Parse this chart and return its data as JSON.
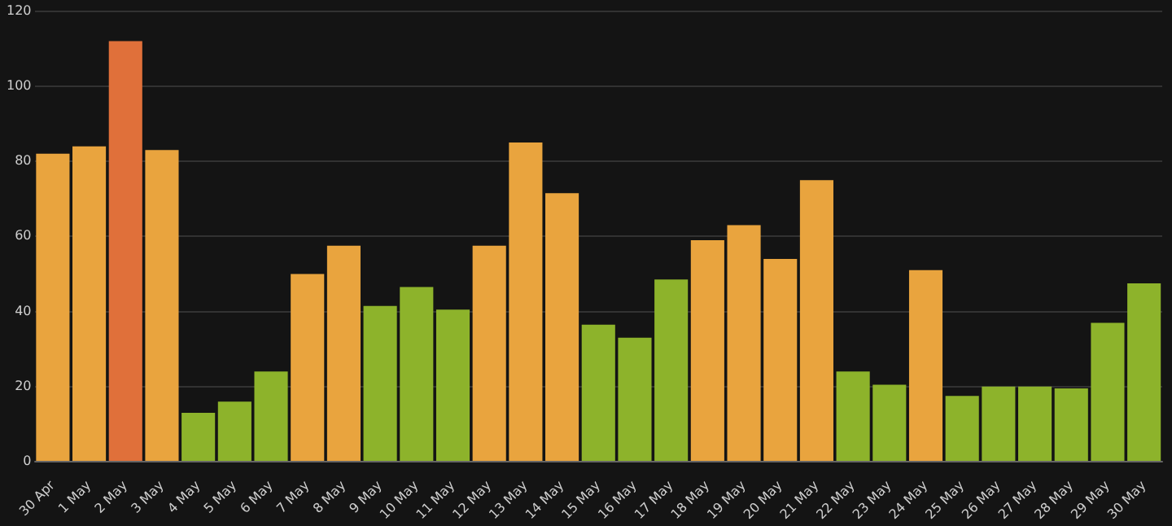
{
  "chart_data": {
    "type": "bar",
    "categories": [
      "30 Apr",
      "1 May",
      "2 May",
      "3 May",
      "4 May",
      "5 May",
      "6 May",
      "7 May",
      "8 May",
      "9 May",
      "10 May",
      "11 May",
      "12 May",
      "13 May",
      "14 May",
      "15 May",
      "16 May",
      "17 May",
      "18 May",
      "19 May",
      "20 May",
      "21 May",
      "22 May",
      "23 May",
      "24 May",
      "25 May",
      "26 May",
      "27 May",
      "28 May",
      "29 May",
      "30 May"
    ],
    "values": [
      82,
      84,
      112,
      83,
      13,
      16,
      24,
      50,
      57.5,
      41.5,
      46.5,
      40.5,
      57.5,
      85,
      71.5,
      36.5,
      33,
      48.5,
      59,
      63,
      54,
      75,
      24,
      20.5,
      51,
      17.5,
      20,
      20,
      19.5,
      37,
      47.5
    ],
    "colors": [
      "#e9a43e",
      "#e9a43e",
      "#e0703a",
      "#e9a43e",
      "#8db32b",
      "#8db32b",
      "#8db32b",
      "#e9a43e",
      "#e9a43e",
      "#8db32b",
      "#8db32b",
      "#8db32b",
      "#e9a43e",
      "#e9a43e",
      "#e9a43e",
      "#8db32b",
      "#8db32b",
      "#8db32b",
      "#e9a43e",
      "#e9a43e",
      "#e9a43e",
      "#e9a43e",
      "#8db32b",
      "#8db32b",
      "#e9a43e",
      "#8db32b",
      "#8db32b",
      "#8db32b",
      "#8db32b",
      "#8db32b",
      "#8db32b"
    ],
    "ylim": [
      0,
      120
    ],
    "yticks": [
      0,
      20,
      40,
      60,
      80,
      100,
      120
    ],
    "grid": "y"
  }
}
